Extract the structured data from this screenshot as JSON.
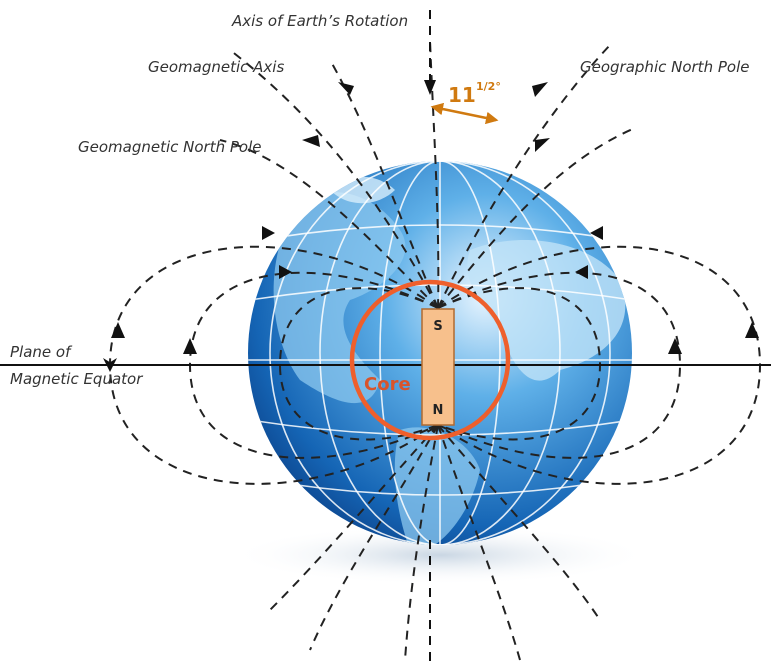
{
  "labels": {
    "axis_rotation": "Axis of Earth’s Rotation",
    "geomagnetic_axis": "Geomagnetic Axis",
    "geographic_north_pole": "Geographic North Pole",
    "geomagnetic_north_pole": "Geomagnetic North Pole",
    "angle": "11",
    "angle_fraction": "1/2°",
    "plane_line1": "Plane of",
    "plane_line2": "Magnetic Equator",
    "core": "Core",
    "magnet_south": "S",
    "magnet_north": "N"
  }
}
